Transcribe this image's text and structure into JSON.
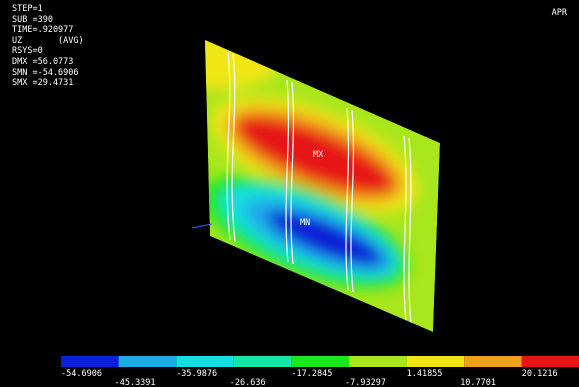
{
  "info": [
    "STEP=1",
    "SUB =390",
    "TIME=.920977",
    "UZ       (AVG)",
    "RSYS=0",
    "DMX =56.0773",
    "SMN =-54.6906",
    "SMX =29.4731"
  ],
  "corner": "APR",
  "plot": {
    "max_label": "MX",
    "min_label": "MN"
  },
  "legend": {
    "colors": [
      "#0b1fd6",
      "#1ea9e8",
      "#12e0e0",
      "#14e6a8",
      "#1ee61e",
      "#a8e61e",
      "#f0e614",
      "#f0a01e",
      "#e61414"
    ],
    "labels": [
      "-54.6906",
      "-45.3391",
      "-35.9876",
      "-26.636",
      "-17.2845",
      "-7.93297",
      "1.41855",
      "10.7701",
      "20.1216"
    ]
  }
}
